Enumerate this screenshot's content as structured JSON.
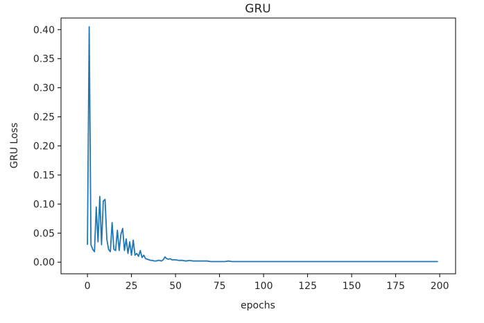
{
  "chart_data": {
    "type": "line",
    "title": "GRU",
    "xlabel": "epochs",
    "ylabel": "GRU Loss",
    "xlim": [
      -15,
      209
    ],
    "ylim": [
      -0.02,
      0.42
    ],
    "xticks": [
      "0",
      "25",
      "50",
      "75",
      "100",
      "125",
      "150",
      "175",
      "200"
    ],
    "yticks": [
      "0.00",
      "0.05",
      "0.10",
      "0.15",
      "0.20",
      "0.25",
      "0.30",
      "0.35",
      "0.40"
    ],
    "grid": false,
    "legend": "none",
    "series": [
      {
        "color": "#1f77b4",
        "x": [
          0,
          1,
          2,
          3,
          4,
          5,
          6,
          7,
          8,
          9,
          10,
          11,
          12,
          13,
          14,
          15,
          16,
          17,
          18,
          19,
          20,
          21,
          22,
          23,
          24,
          25,
          26,
          27,
          28,
          29,
          30,
          31,
          32,
          33,
          34,
          35,
          36,
          37,
          38,
          39,
          40,
          41,
          42,
          43,
          44,
          45,
          46,
          47,
          48,
          49,
          50,
          52,
          54,
          56,
          58,
          60,
          62,
          64,
          66,
          68,
          70,
          72,
          74,
          76,
          78,
          80,
          82,
          84,
          86,
          88,
          90,
          95,
          100,
          110,
          120,
          130,
          140,
          150,
          160,
          170,
          180,
          190,
          199
        ],
        "values": [
          0.03,
          0.405,
          0.03,
          0.022,
          0.018,
          0.095,
          0.035,
          0.113,
          0.03,
          0.105,
          0.108,
          0.04,
          0.022,
          0.018,
          0.068,
          0.022,
          0.02,
          0.055,
          0.02,
          0.048,
          0.058,
          0.02,
          0.04,
          0.015,
          0.035,
          0.012,
          0.038,
          0.012,
          0.015,
          0.01,
          0.02,
          0.008,
          0.012,
          0.006,
          0.005,
          0.004,
          0.003,
          0.003,
          0.002,
          0.002,
          0.003,
          0.003,
          0.002,
          0.004,
          0.009,
          0.006,
          0.005,
          0.006,
          0.004,
          0.004,
          0.004,
          0.003,
          0.003,
          0.002,
          0.003,
          0.002,
          0.002,
          0.002,
          0.002,
          0.002,
          0.001,
          0.001,
          0.001,
          0.001,
          0.001,
          0.002,
          0.001,
          0.001,
          0.001,
          0.001,
          0.001,
          0.001,
          0.001,
          0.001,
          0.001,
          0.001,
          0.001,
          0.001,
          0.001,
          0.001,
          0.001,
          0.001,
          0.001
        ]
      }
    ]
  }
}
